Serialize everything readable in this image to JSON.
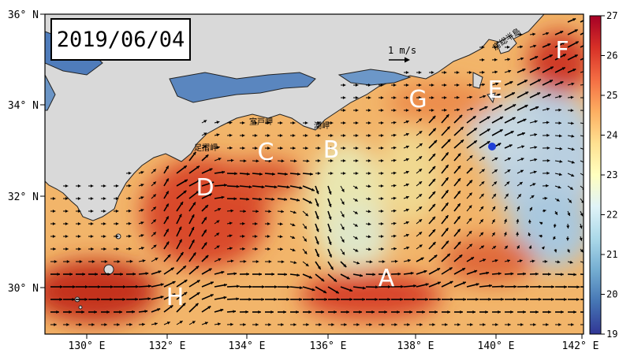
{
  "date_label": "2019/06/04",
  "scale": {
    "label": "1 m/s"
  },
  "lat_ticks": [
    "36° N",
    "34° N",
    "32° N",
    "30° N"
  ],
  "lon_ticks": [
    "130° E",
    "132° E",
    "134° E",
    "136° E",
    "138° E",
    "140° E",
    "142° E"
  ],
  "colorbar": {
    "min": 19,
    "max": 27,
    "ticks": [
      "27",
      "26",
      "25",
      "24",
      "23",
      "22",
      "21",
      "20",
      "19"
    ],
    "colors": [
      "#313695",
      "#4575b4",
      "#74add1",
      "#abd9e9",
      "#e0f3f8",
      "#ffffbf",
      "#fee090",
      "#fdae61",
      "#f46d43",
      "#d73027",
      "#a50026"
    ]
  },
  "region_labels": [
    "A",
    "B",
    "C",
    "D",
    "E",
    "F",
    "G",
    "H"
  ],
  "place_labels": {
    "boso": "房総半島",
    "muroto": "室戸岬",
    "shiono": "潮岬",
    "ashizuri": "足摺岬"
  },
  "colors": {
    "land": "#d9d9d9",
    "station_dot": "#1f3fd6",
    "arrow": "#000000"
  }
}
